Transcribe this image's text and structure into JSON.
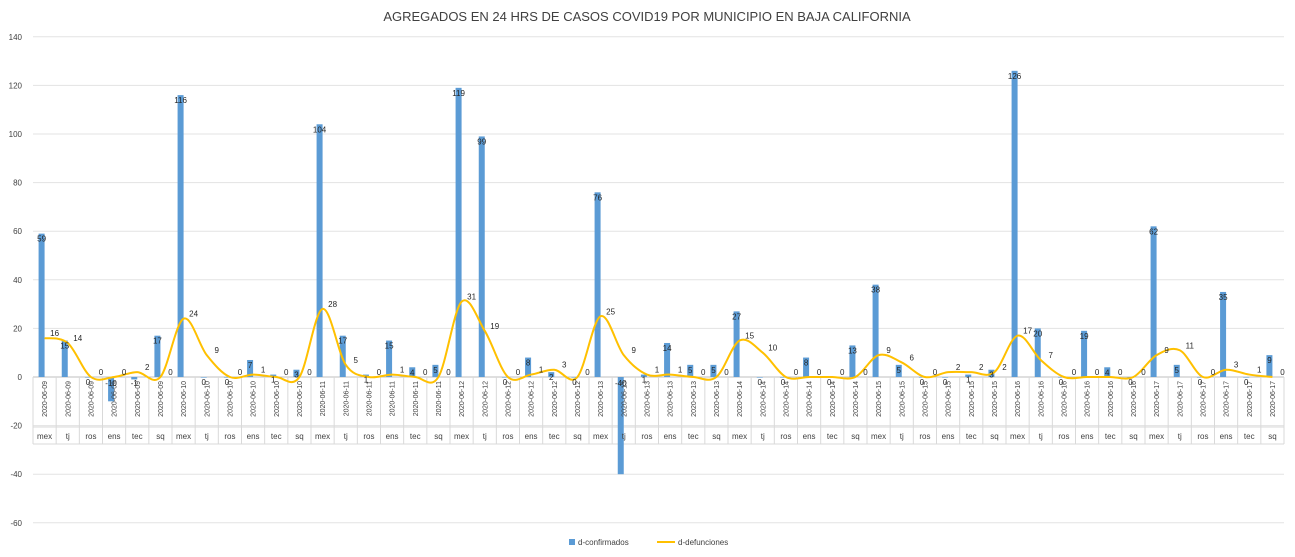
{
  "chart_data": {
    "type": "bar",
    "title": "AGREGADOS EN 24 HRS DE CASOS  COVID19 POR MUNICIPIO EN BAJA CALIFORNIA",
    "xlabel": "",
    "ylabel": "",
    "ylim": [
      -60,
      140
    ],
    "yticks": [
      -60,
      -40,
      -20,
      0,
      20,
      40,
      60,
      80,
      100,
      120,
      140
    ],
    "grid": true,
    "legend_position": "bottom",
    "categories": [
      {
        "date": "2020-06-09",
        "mun": "mex"
      },
      {
        "date": "2020-06-09",
        "mun": "tj"
      },
      {
        "date": "2020-06-09",
        "mun": "ros"
      },
      {
        "date": "2020-06-09",
        "mun": "ens"
      },
      {
        "date": "2020-06-09",
        "mun": "tec"
      },
      {
        "date": "2020-06-09",
        "mun": "sq"
      },
      {
        "date": "2020-06-10",
        "mun": "mex"
      },
      {
        "date": "2020-06-10",
        "mun": "tj"
      },
      {
        "date": "2020-06-10",
        "mun": "ros"
      },
      {
        "date": "2020-06-10",
        "mun": "ens"
      },
      {
        "date": "2020-06-10",
        "mun": "tec"
      },
      {
        "date": "2020-06-10",
        "mun": "sq"
      },
      {
        "date": "2020-06-11",
        "mun": "mex"
      },
      {
        "date": "2020-06-11",
        "mun": "tj"
      },
      {
        "date": "2020-06-11",
        "mun": "ros"
      },
      {
        "date": "2020-06-11",
        "mun": "ens"
      },
      {
        "date": "2020-06-11",
        "mun": "tec"
      },
      {
        "date": "2020-06-11",
        "mun": "sq"
      },
      {
        "date": "2020-06-12",
        "mun": "mex"
      },
      {
        "date": "2020-06-12",
        "mun": "tj"
      },
      {
        "date": "2020-06-12",
        "mun": "ros"
      },
      {
        "date": "2020-06-12",
        "mun": "ens"
      },
      {
        "date": "2020-06-12",
        "mun": "tec"
      },
      {
        "date": "2020-06-12",
        "mun": "sq"
      },
      {
        "date": "2020-06-13",
        "mun": "mex"
      },
      {
        "date": "2020-06-13",
        "mun": "tj"
      },
      {
        "date": "2020-06-13",
        "mun": "ros"
      },
      {
        "date": "2020-06-13",
        "mun": "ens"
      },
      {
        "date": "2020-06-13",
        "mun": "tec"
      },
      {
        "date": "2020-06-13",
        "mun": "sq"
      },
      {
        "date": "2020-06-14",
        "mun": "mex"
      },
      {
        "date": "2020-06-14",
        "mun": "tj"
      },
      {
        "date": "2020-06-14",
        "mun": "ros"
      },
      {
        "date": "2020-06-14",
        "mun": "ens"
      },
      {
        "date": "2020-06-14",
        "mun": "tec"
      },
      {
        "date": "2020-06-14",
        "mun": "sq"
      },
      {
        "date": "2020-06-15",
        "mun": "mex"
      },
      {
        "date": "2020-06-15",
        "mun": "tj"
      },
      {
        "date": "2020-06-15",
        "mun": "ros"
      },
      {
        "date": "2020-06-15",
        "mun": "ens"
      },
      {
        "date": "2020-06-15",
        "mun": "tec"
      },
      {
        "date": "2020-06-15",
        "mun": "sq"
      },
      {
        "date": "2020-06-16",
        "mun": "mex"
      },
      {
        "date": "2020-06-16",
        "mun": "tj"
      },
      {
        "date": "2020-06-16",
        "mun": "ros"
      },
      {
        "date": "2020-06-16",
        "mun": "ens"
      },
      {
        "date": "2020-06-16",
        "mun": "tec"
      },
      {
        "date": "2020-06-16",
        "mun": "sq"
      },
      {
        "date": "2020-06-17",
        "mun": "mex"
      },
      {
        "date": "2020-06-17",
        "mun": "tj"
      },
      {
        "date": "2020-06-17",
        "mun": "ros"
      },
      {
        "date": "2020-06-17",
        "mun": "ens"
      },
      {
        "date": "2020-06-17",
        "mun": "tec"
      },
      {
        "date": "2020-06-17",
        "mun": "sq"
      }
    ],
    "series": [
      {
        "name": "d-confirmados",
        "kind": "bar",
        "color": "#5b9bd5",
        "values": [
          59,
          15,
          0,
          -10,
          -1,
          17,
          116,
          0,
          0,
          7,
          1,
          3,
          104,
          17,
          1,
          15,
          4,
          5,
          119,
          99,
          0,
          8,
          2,
          0,
          76,
          -40,
          1,
          14,
          5,
          5,
          27,
          0,
          0,
          8,
          0,
          13,
          38,
          5,
          0,
          0,
          1,
          3,
          126,
          20,
          0,
          19,
          4,
          0,
          62,
          5,
          0,
          35,
          0,
          9
        ]
      },
      {
        "name": "d-defunciones",
        "kind": "line",
        "color": "#ffc000",
        "values": [
          16,
          14,
          0,
          0,
          2,
          0,
          24,
          9,
          0,
          1,
          0,
          0,
          28,
          5,
          0,
          1,
          0,
          0,
          31,
          19,
          0,
          1,
          3,
          0,
          25,
          9,
          1,
          1,
          0,
          0,
          15,
          10,
          0,
          0,
          0,
          0,
          9,
          6,
          0,
          2,
          2,
          2,
          17,
          7,
          0,
          0,
          0,
          0,
          9,
          11,
          0,
          3,
          1,
          0
        ]
      }
    ]
  }
}
